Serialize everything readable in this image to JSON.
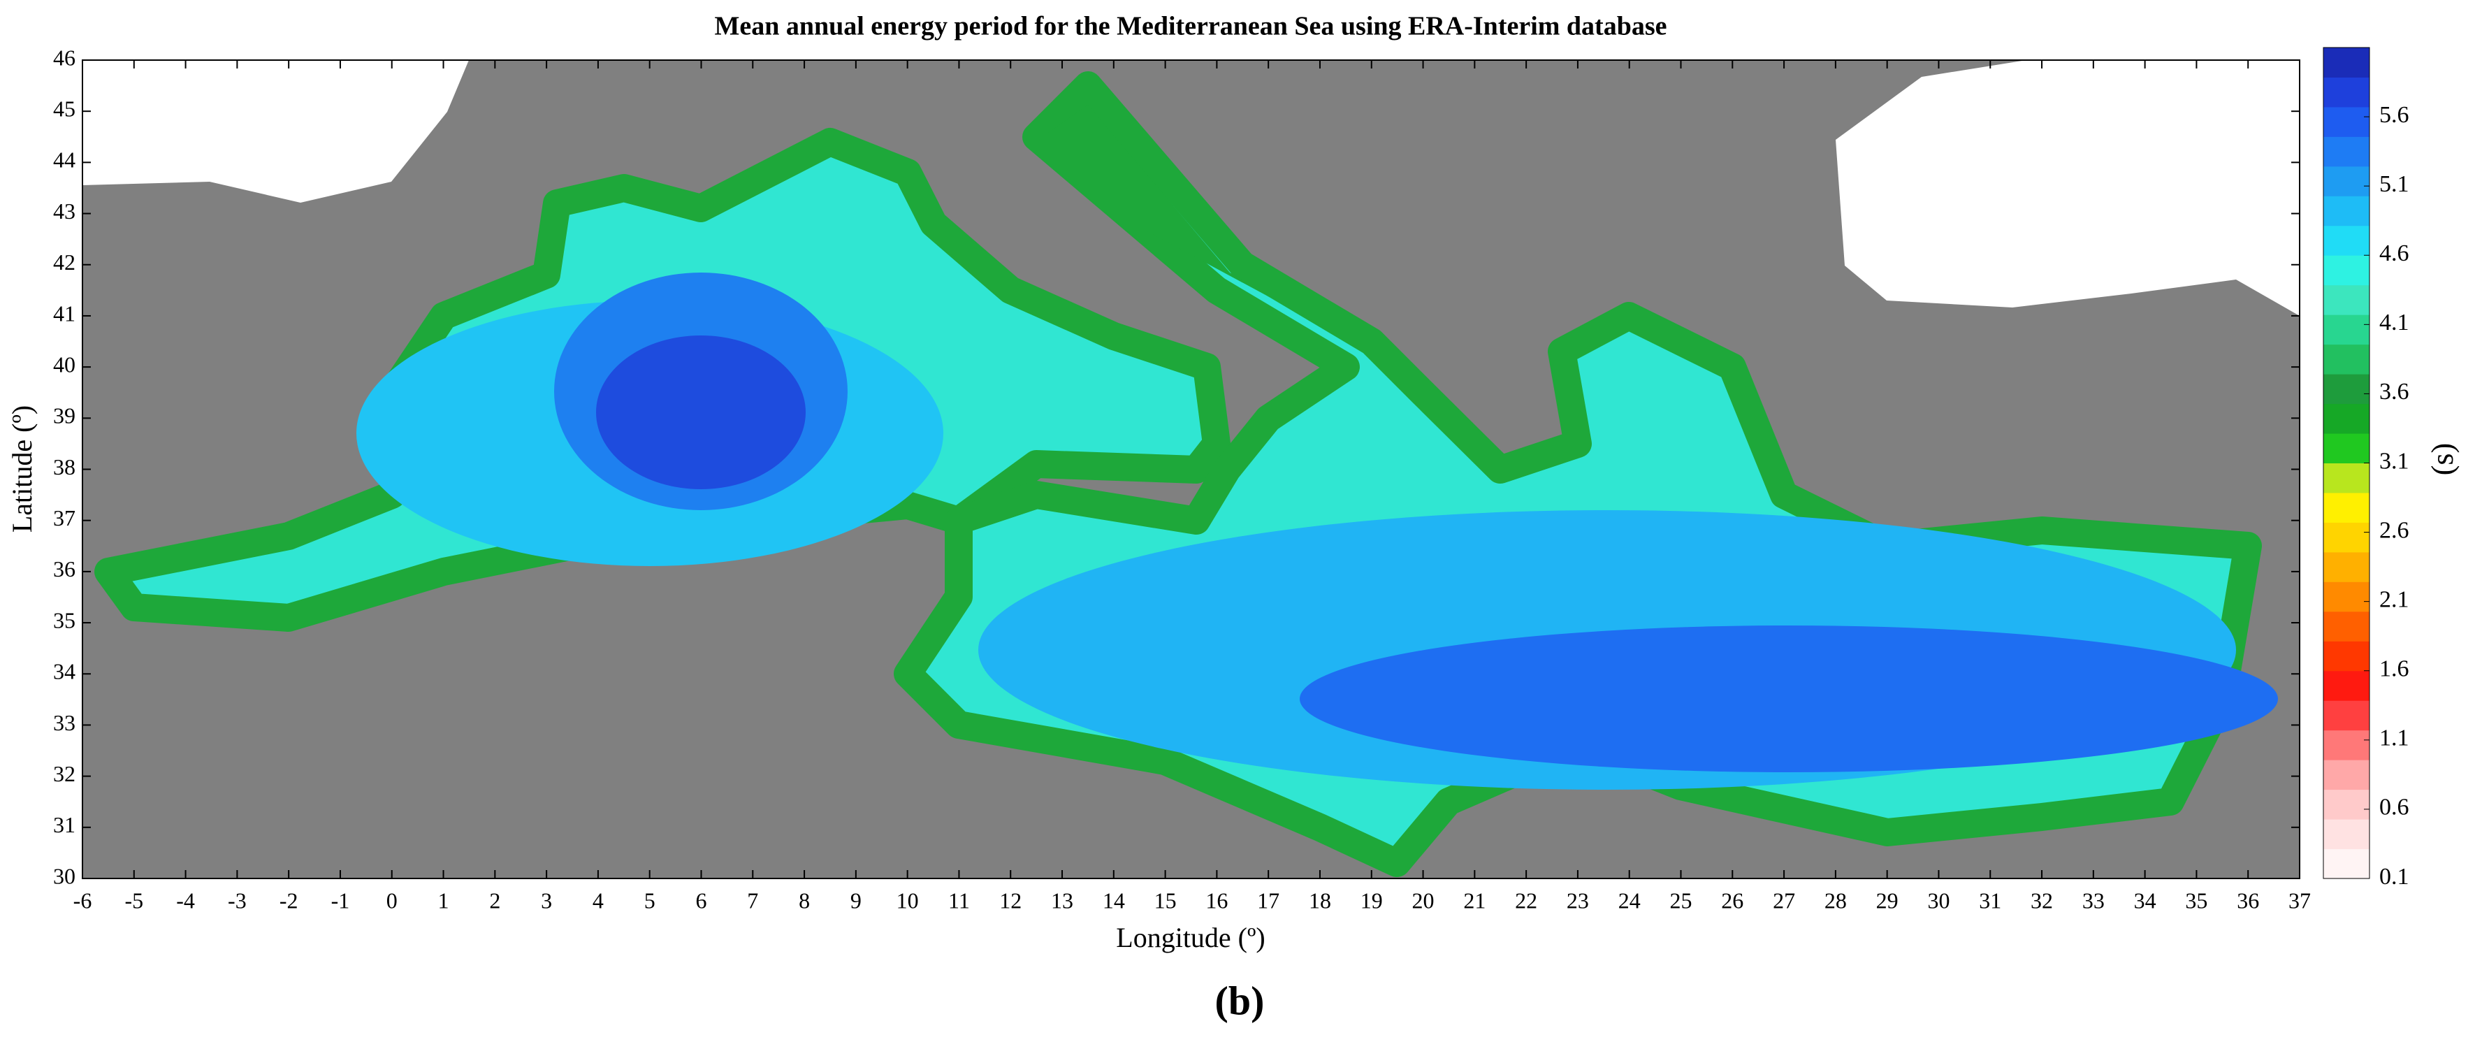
{
  "chart_data": {
    "type": "map",
    "title": "Mean annual energy period for the Mediterranean Sea using ERA-Interim database",
    "x_label": "Longitude (º)",
    "y_label": "Latitude (º)",
    "xlim": [
      -6,
      37
    ],
    "ylim": [
      30,
      46
    ],
    "xticks": [
      -6,
      -5,
      -4,
      -3,
      -2,
      -1,
      0,
      1,
      2,
      3,
      4,
      5,
      6,
      7,
      8,
      9,
      10,
      11,
      12,
      13,
      14,
      15,
      16,
      17,
      18,
      19,
      20,
      21,
      22,
      23,
      24,
      25,
      26,
      27,
      28,
      29,
      30,
      31,
      32,
      33,
      34,
      35,
      36,
      37
    ],
    "yticks": [
      30,
      31,
      32,
      33,
      34,
      35,
      36,
      37,
      38,
      39,
      40,
      41,
      42,
      43,
      44,
      45,
      46
    ],
    "colorbar": {
      "label": "(s)",
      "lim": [
        0.1,
        6.1
      ],
      "ticks": [
        0.1,
        0.6,
        1.1,
        1.6,
        2.1,
        2.6,
        3.1,
        3.6,
        4.1,
        4.6,
        5.1,
        5.6
      ],
      "colors": [
        "#fff4f4",
        "#ffe2e2",
        "#ffcaca",
        "#ffa8a8",
        "#ff7878",
        "#ff4040",
        "#ff1a10",
        "#ff3800",
        "#ff6000",
        "#ff8a00",
        "#ffb000",
        "#ffd400",
        "#fff000",
        "#b8e61e",
        "#20c820",
        "#16a826",
        "#1e9c3c",
        "#22c060",
        "#28d690",
        "#3ce6be",
        "#2ef2e2",
        "#20dcf6",
        "#1ebcf6",
        "#1e9cf2",
        "#1e7cf4",
        "#1e5cf0",
        "#1e40dc",
        "#1a2cb8"
      ]
    },
    "caption": "(b)"
  }
}
